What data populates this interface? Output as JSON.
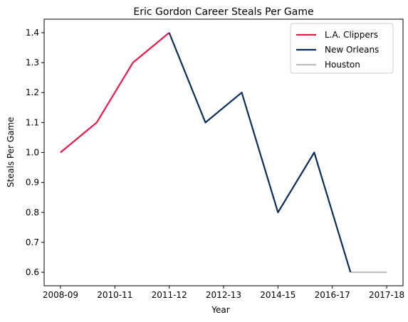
{
  "chart_data": {
    "type": "line",
    "title": "Eric Gordon Career Steals Per Game",
    "xlabel": "Year",
    "ylabel": "Steals Per Game",
    "x_ticks": [
      "2008-09",
      "2010-11",
      "2011-12",
      "2012-13",
      "2014-15",
      "2016-17",
      "2017-18"
    ],
    "y_ticks": [
      "0.6",
      "0.7",
      "0.8",
      "0.9",
      "1.0",
      "1.1",
      "1.2",
      "1.3",
      "1.4"
    ],
    "ylim": [
      0.555,
      1.445
    ],
    "grid": false,
    "legend_position": "top-right",
    "series": [
      {
        "name": "L.A. Clippers",
        "color": "#E31B4B",
        "points": [
          [
            0,
            1.0
          ],
          [
            1,
            1.1
          ],
          [
            2,
            1.3
          ],
          [
            3,
            1.4
          ]
        ]
      },
      {
        "name": "New Orleans",
        "color": "#0C2D5A",
        "points": [
          [
            3,
            1.4
          ],
          [
            4,
            1.1
          ],
          [
            5,
            1.2
          ],
          [
            6,
            0.8
          ],
          [
            7,
            1.0
          ],
          [
            8,
            0.6
          ]
        ]
      },
      {
        "name": "Houston",
        "color": "#BFBFBF",
        "points": [
          [
            8,
            0.6
          ],
          [
            9,
            0.6
          ]
        ]
      }
    ]
  }
}
